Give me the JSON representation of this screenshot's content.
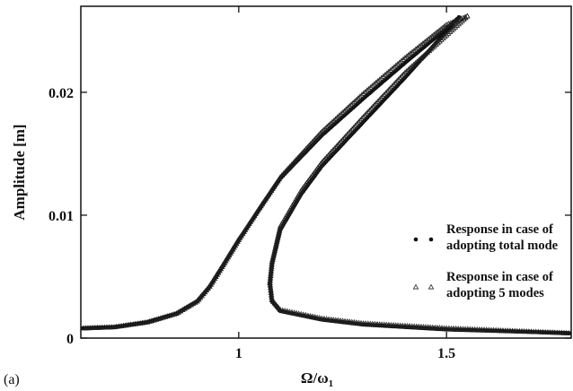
{
  "chart_data": {
    "type": "scatter",
    "panel_label": "(a)",
    "xlabel": "Ω/ω",
    "xlabel_subscript": "1",
    "ylabel": "Amplitude [m]",
    "xlim": [
      0.62,
      1.8
    ],
    "ylim": [
      0,
      0.027
    ],
    "x_ticks": [
      {
        "value": 1,
        "label": "1"
      },
      {
        "value": 1.5,
        "label": "1.5"
      }
    ],
    "y_ticks": [
      {
        "value": 0,
        "label": "0"
      },
      {
        "value": 0.01,
        "label": "0.01"
      },
      {
        "value": 0.02,
        "label": "0.02"
      }
    ],
    "grid": false,
    "legend_position": "center-right",
    "series": [
      {
        "name": "Response in case of adopting total mode",
        "marker": "filled-circle",
        "color": "#111111",
        "branches": {
          "upper": [
            [
              0.62,
              0.0008
            ],
            [
              0.7,
              0.0009
            ],
            [
              0.78,
              0.0013
            ],
            [
              0.85,
              0.002
            ],
            [
              0.9,
              0.003
            ],
            [
              0.93,
              0.0042
            ],
            [
              0.96,
              0.0058
            ],
            [
              1.0,
              0.008
            ],
            [
              1.05,
              0.0105
            ],
            [
              1.1,
              0.013
            ],
            [
              1.2,
              0.0165
            ],
            [
              1.3,
              0.0195
            ],
            [
              1.4,
              0.0224
            ],
            [
              1.5,
              0.0252
            ],
            [
              1.53,
              0.0261
            ]
          ],
          "middle": [
            [
              1.53,
              0.0261
            ],
            [
              1.4,
              0.0212
            ],
            [
              1.3,
              0.0176
            ],
            [
              1.2,
              0.014
            ],
            [
              1.15,
              0.0117
            ],
            [
              1.1,
              0.0088
            ],
            [
              1.08,
              0.006
            ],
            [
              1.075,
              0.0045
            ]
          ],
          "lower": [
            [
              1.075,
              0.0045
            ],
            [
              1.08,
              0.003
            ],
            [
              1.1,
              0.0022
            ],
            [
              1.2,
              0.0015
            ],
            [
              1.3,
              0.0011
            ],
            [
              1.5,
              0.0007
            ],
            [
              1.8,
              0.0004
            ]
          ]
        }
      },
      {
        "name": "Response in case of adopting 5 modes",
        "marker": "open-triangle",
        "color": "#111111",
        "branches": {
          "upper": [
            [
              0.62,
              0.0008
            ],
            [
              0.7,
              0.0009
            ],
            [
              0.78,
              0.0013
            ],
            [
              0.85,
              0.002
            ],
            [
              0.9,
              0.003
            ],
            [
              0.93,
              0.0042
            ],
            [
              0.96,
              0.0058
            ],
            [
              1.0,
              0.008
            ],
            [
              1.05,
              0.0106
            ],
            [
              1.1,
              0.0131
            ],
            [
              1.2,
              0.0168
            ],
            [
              1.3,
              0.0199
            ],
            [
              1.4,
              0.0228
            ],
            [
              1.5,
              0.0255
            ],
            [
              1.55,
              0.0262
            ]
          ],
          "middle": [
            [
              1.55,
              0.0262
            ],
            [
              1.4,
              0.0216
            ],
            [
              1.3,
              0.018
            ],
            [
              1.2,
              0.0143
            ],
            [
              1.15,
              0.012
            ],
            [
              1.1,
              0.0091
            ],
            [
              1.08,
              0.0062
            ],
            [
              1.075,
              0.0045
            ]
          ],
          "lower": [
            [
              1.075,
              0.0045
            ],
            [
              1.08,
              0.0031
            ],
            [
              1.1,
              0.0023
            ],
            [
              1.2,
              0.0016
            ],
            [
              1.3,
              0.0012
            ],
            [
              1.5,
              0.0008
            ],
            [
              1.8,
              0.0004
            ]
          ]
        }
      }
    ],
    "legend": [
      {
        "series_index": 0,
        "line1": "Response in case of",
        "line2": "adopting total mode"
      },
      {
        "series_index": 1,
        "line1": "Response in case of",
        "line2": "adopting 5 modes"
      }
    ]
  }
}
